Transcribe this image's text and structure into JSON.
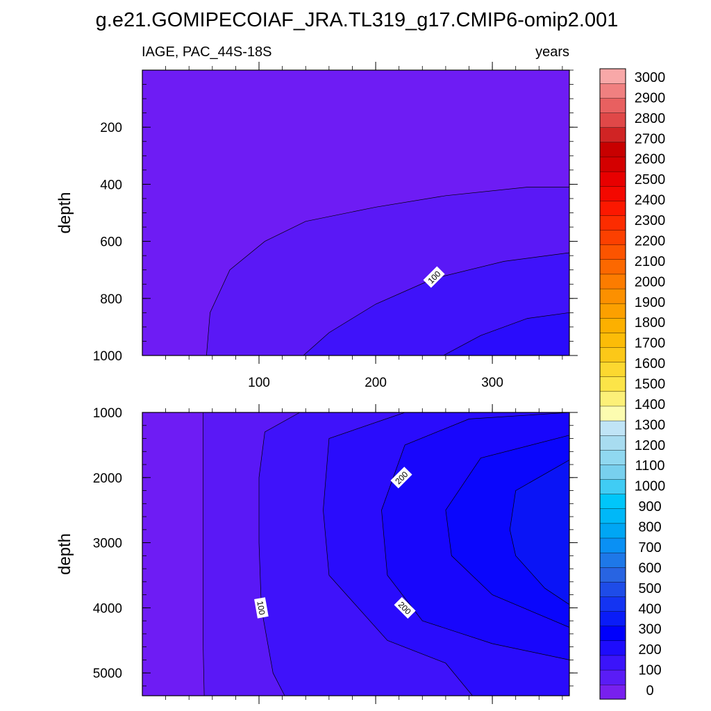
{
  "title": "g.e21.GOMIPECOIAF_JRA.TL319_g17.CMIP6-omip2.001",
  "chart_data": {
    "type": "contour",
    "variable": "IAGE, PAC_44S-18S",
    "units": "years",
    "x": {
      "range": [
        0,
        366
      ],
      "ticks": [
        100,
        200,
        300
      ]
    },
    "colorbar": {
      "levels": [
        0,
        100,
        200,
        300,
        400,
        500,
        600,
        700,
        800,
        900,
        1000,
        1100,
        1200,
        1300,
        1400,
        1500,
        1600,
        1700,
        1800,
        1900,
        2000,
        2100,
        2200,
        2300,
        2400,
        2500,
        2600,
        2700,
        2800,
        2900,
        3000
      ],
      "colors": [
        "#7820ee",
        "#5a1cf6",
        "#3b14fa",
        "#1e0cfc",
        "#0000fc",
        "#0a1cf8",
        "#1434f2",
        "#1e4ce8",
        "#2864e2",
        "#1e78e8",
        "#0a90f4",
        "#00a6f4",
        "#00b8f8",
        "#00c6fa",
        "#40ccf4",
        "#78d0ee",
        "#90d8f0",
        "#a8dcf0",
        "#c0e4f6",
        "#fcfcb0",
        "#fcf078",
        "#fce448",
        "#fcd830",
        "#fcc818",
        "#fcbc08",
        "#fcb000",
        "#fca000",
        "#fc9000",
        "#fc7c00",
        "#fc6800",
        "#fc5400",
        "#fc4000",
        "#fc2c00",
        "#fc1800",
        "#f40800",
        "#e80000",
        "#d40000",
        "#c80000",
        "#d02424",
        "#e04848",
        "#e86060",
        "#f08080",
        "#f8a8a8"
      ],
      "ticks": [
        "0",
        "100",
        "200",
        "300",
        "400",
        "500",
        "600",
        "700",
        "800",
        "900",
        "1000",
        "1100",
        "1200",
        "1300",
        "1400",
        "1500",
        "1600",
        "1700",
        "1800",
        "1900",
        "2000",
        "2100",
        "2200",
        "2300",
        "2400",
        "2500",
        "2600",
        "2700",
        "2800",
        "2900",
        "3000"
      ]
    },
    "panels": [
      {
        "name": "upper",
        "ylabel": "depth",
        "y": {
          "range": [
            0,
            1000
          ],
          "ticks": [
            200,
            400,
            600,
            800,
            1000
          ],
          "inverted": true
        },
        "contours": [
          {
            "level": 50,
            "points": [
              [
                55,
                1000
              ],
              [
                58,
                850
              ],
              [
                75,
                700
              ],
              [
                105,
                600
              ],
              [
                140,
                530
              ],
              [
                200,
                480
              ],
              [
                260,
                440
              ],
              [
                330,
                410
              ],
              [
                366,
                410
              ]
            ]
          },
          {
            "level": 100,
            "label": "100",
            "label_at": [
              250,
              725
            ],
            "points": [
              [
                138,
                1000
              ],
              [
                160,
                920
              ],
              [
                200,
                820
              ],
              [
                250,
                730
              ],
              [
                310,
                670
              ],
              [
                366,
                640
              ]
            ]
          },
          {
            "level": 150,
            "points": [
              [
                258,
                1000
              ],
              [
                290,
                930
              ],
              [
                330,
                870
              ],
              [
                366,
                850
              ]
            ]
          }
        ]
      },
      {
        "name": "lower",
        "ylabel": "depth",
        "y": {
          "range": [
            1000,
            5350
          ],
          "ticks": [
            1000,
            2000,
            3000,
            4000,
            5000
          ],
          "inverted": true
        },
        "contours": [
          {
            "level": 50,
            "points": [
              [
                52,
                1000
              ],
              [
                52,
                1600
              ],
              [
                52,
                3000
              ],
              [
                52,
                4500
              ],
              [
                53,
                5350
              ]
            ]
          },
          {
            "level": 100,
            "label": "100",
            "label_at": [
              102,
              4000
            ],
            "points": [
              [
                135,
                1000
              ],
              [
                105,
                1300
              ],
              [
                100,
                2000
              ],
              [
                100,
                3000
              ],
              [
                102,
                4000
              ],
              [
                112,
                5000
              ],
              [
                122,
                5350
              ]
            ]
          },
          {
            "level": 150,
            "points": [
              [
                225,
                1000
              ],
              [
                160,
                1400
              ],
              [
                155,
                2500
              ],
              [
                160,
                3500
              ],
              [
                210,
                4500
              ],
              [
                260,
                4850
              ],
              [
                283,
                5350
              ]
            ]
          },
          {
            "level": 200,
            "label": "200",
            "label_at": [
              222,
              2000
            ],
            "label2_at": [
              225,
              4000
            ],
            "points": [
              [
                366,
                1000
              ],
              [
                280,
                1100
              ],
              [
                225,
                1500
              ],
              [
                205,
                2500
              ],
              [
                210,
                3500
              ],
              [
                240,
                4200
              ],
              [
                300,
                4550
              ],
              [
                366,
                4800
              ]
            ]
          },
          {
            "level": 250,
            "points": [
              [
                366,
                1350
              ],
              [
                290,
                1700
              ],
              [
                260,
                2500
              ],
              [
                265,
                3200
              ],
              [
                300,
                3800
              ],
              [
                366,
                4300
              ]
            ]
          },
          {
            "level": 300,
            "points": [
              [
                366,
                1730
              ],
              [
                320,
                2200
              ],
              [
                315,
                2800
              ],
              [
                320,
                3200
              ],
              [
                345,
                3700
              ],
              [
                366,
                3950
              ]
            ]
          }
        ]
      }
    ]
  }
}
